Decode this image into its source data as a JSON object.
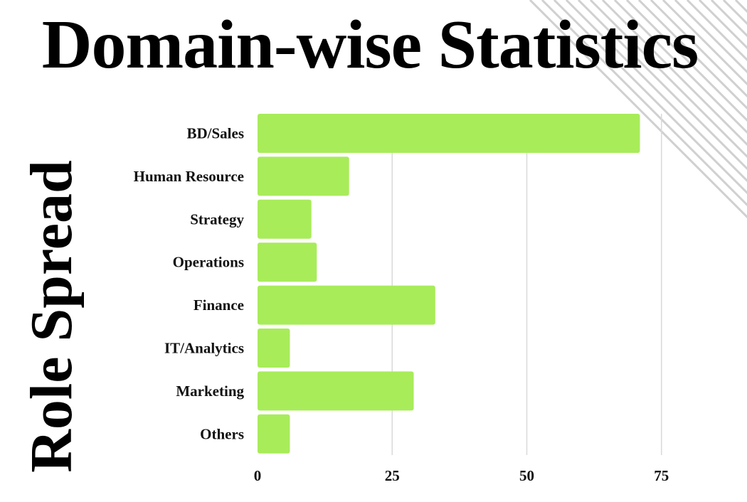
{
  "page": {
    "title": "Domain-wise Statistics",
    "side_label": "Role Spread"
  },
  "colors": {
    "bar": "#a8ec5a",
    "grid": "#d9d9d9",
    "stripes": "#d0d0d0",
    "text": "#111111"
  },
  "chart_data": {
    "type": "bar",
    "orientation": "horizontal",
    "title": "Domain-wise Statistics",
    "xlabel": "",
    "ylabel": "Role Spread",
    "categories": [
      "BD/Sales",
      "Human Resource",
      "Strategy",
      "Operations",
      "Finance",
      "IT/Analytics",
      "Marketing",
      "Others"
    ],
    "values": [
      71,
      17,
      10,
      11,
      33,
      6,
      29,
      6
    ],
    "xlim": [
      0,
      80
    ],
    "xticks": [
      0,
      25,
      50,
      75
    ],
    "xtick_labels": [
      "0",
      "25",
      "50",
      "75"
    ],
    "grid": true,
    "legend": "none"
  }
}
